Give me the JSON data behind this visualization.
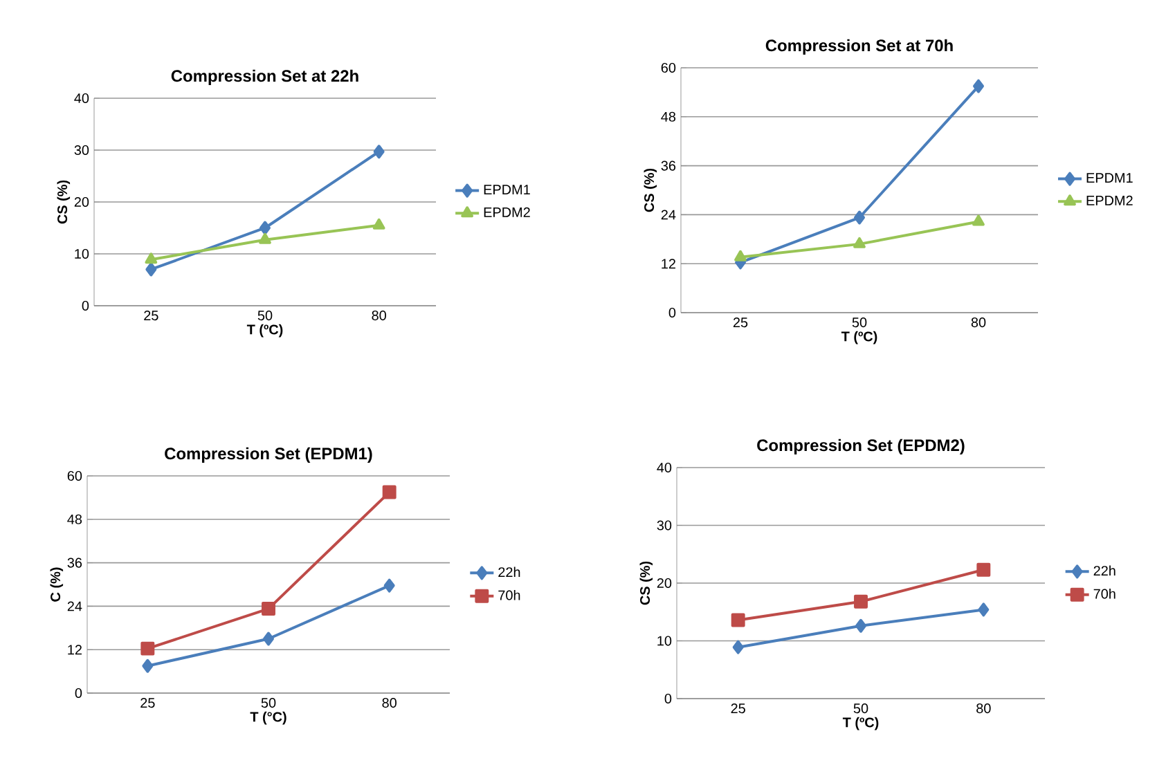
{
  "chart_data": [
    {
      "type": "line",
      "title": "Compression Set at 22h",
      "xlabel": "T (ºC)",
      "ylabel": "CS (%)",
      "categories": [
        "25",
        "50",
        "80"
      ],
      "ylim": [
        0,
        40
      ],
      "yticks": [
        0,
        10,
        20,
        30,
        40
      ],
      "grid": "y",
      "legend": "right",
      "series": [
        {
          "name": "EPDM1",
          "color": "#4a7ebb",
          "marker": "diamond",
          "values": [
            7,
            15,
            29.7
          ]
        },
        {
          "name": "EPDM2",
          "color": "#98c455",
          "marker": "triangle",
          "values": [
            8.9,
            12.7,
            15.5
          ]
        }
      ]
    },
    {
      "type": "line",
      "title": "Compression Set at 70h",
      "xlabel": "T (ºC)",
      "ylabel": "CS (%)",
      "categories": [
        "25",
        "50",
        "80"
      ],
      "ylim": [
        0,
        60
      ],
      "yticks": [
        0,
        12,
        24,
        36,
        48,
        60
      ],
      "grid": "y",
      "legend": "right",
      "series": [
        {
          "name": "EPDM1",
          "color": "#4a7ebb",
          "marker": "diamond",
          "values": [
            12.3,
            23.3,
            55.5
          ]
        },
        {
          "name": "EPDM2",
          "color": "#98c455",
          "marker": "triangle",
          "values": [
            13.6,
            16.8,
            22.3
          ]
        }
      ]
    },
    {
      "type": "line",
      "title": "Compression Set (EPDM1)",
      "xlabel": "T (°C)",
      "ylabel": "C (%)",
      "categories": [
        "25",
        "50",
        "80"
      ],
      "ylim": [
        0,
        60
      ],
      "yticks": [
        0,
        12,
        24,
        36,
        48,
        60
      ],
      "grid": "y",
      "legend": "right",
      "series": [
        {
          "name": "22h",
          "color": "#4a7ebb",
          "marker": "diamond",
          "values": [
            7.5,
            15,
            29.7
          ]
        },
        {
          "name": "70h",
          "color": "#be4b48",
          "marker": "square",
          "values": [
            12.3,
            23.3,
            55.5
          ]
        }
      ]
    },
    {
      "type": "line",
      "title": "Compression Set (EPDM2)",
      "xlabel": "T (ºC)",
      "ylabel": "CS (%)",
      "categories": [
        "25",
        "50",
        "80"
      ],
      "ylim": [
        0,
        40
      ],
      "yticks": [
        0,
        10,
        20,
        30,
        40
      ],
      "grid": "y",
      "legend": "right",
      "series": [
        {
          "name": "22h",
          "color": "#4a7ebb",
          "marker": "diamond",
          "values": [
            8.9,
            12.6,
            15.4
          ]
        },
        {
          "name": "70h",
          "color": "#be4b48",
          "marker": "square",
          "values": [
            13.6,
            16.8,
            22.3
          ]
        }
      ]
    }
  ]
}
